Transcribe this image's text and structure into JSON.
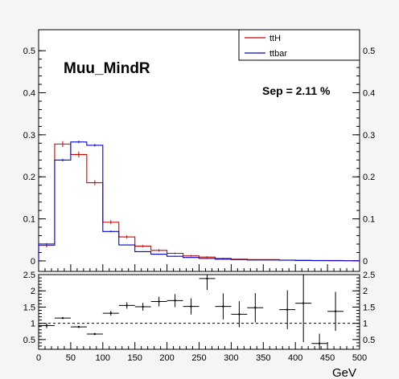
{
  "chart_data": [
    {
      "type": "line",
      "title": "Muu_MindR",
      "annotation": "Sep = 2.11 %",
      "xlim": [
        0,
        500
      ],
      "ylim": [
        -0.025,
        0.55
      ],
      "x_ticks": [],
      "y_ticks": [
        "0",
        "0.1",
        "0.2",
        "0.3",
        "0.4",
        "0.5"
      ],
      "y_tick_values": [
        0,
        0.1,
        0.2,
        0.3,
        0.4,
        0.5
      ],
      "legend_placement": "top-right",
      "bin_edges": [
        0,
        25,
        50,
        75,
        100,
        125,
        150,
        175,
        200,
        225,
        250,
        275,
        300,
        325,
        350,
        375,
        400,
        425,
        450,
        475,
        500
      ],
      "series": [
        {
          "name": "ttH",
          "color": "#d00000",
          "values": [
            0.037,
            0.278,
            0.253,
            0.186,
            0.092,
            0.057,
            0.035,
            0.025,
            0.018,
            0.012,
            0.009,
            0.006,
            0.004,
            0.003,
            0.003,
            0.002,
            0.0015,
            0.001,
            0.001,
            0.0005
          ],
          "errors": [
            0.005,
            0.007,
            0.007,
            0.006,
            0.005,
            0.004,
            0.003,
            0.003,
            0.002,
            0.002,
            0.002,
            0.0015,
            0.001,
            0.001,
            0.001,
            0.001,
            0.001,
            0.0008,
            0.0008,
            0.0005
          ]
        },
        {
          "name": "ttbar",
          "color": "#0000d0",
          "values": [
            0.04,
            0.24,
            0.283,
            0.275,
            0.07,
            0.038,
            0.022,
            0.016,
            0.011,
            0.008,
            0.006,
            0.004,
            0.003,
            0.002,
            0.002,
            0.0015,
            0.001,
            0.0007,
            0.0005,
            0.0003
          ],
          "errors": [
            0.002,
            0.003,
            0.003,
            0.003,
            0.002,
            0.001,
            0.001,
            0.001,
            0.001,
            0.0008,
            0.0006,
            0.0005,
            0.0004,
            0.0003,
            0.0003,
            0.0002,
            0.0002,
            0.0002,
            0.0001,
            0.0001
          ]
        }
      ]
    },
    {
      "type": "scatter",
      "xlabel": "GeV",
      "xlim": [
        0,
        500
      ],
      "ylim": [
        0.2,
        2.5
      ],
      "reference_line": 1,
      "x_ticks": [
        "0",
        "50",
        "100",
        "150",
        "200",
        "250",
        "300",
        "350",
        "400",
        "450",
        "500"
      ],
      "x_tick_values": [
        0,
        50,
        100,
        150,
        200,
        250,
        300,
        350,
        400,
        450,
        500
      ],
      "y_ticks": [
        "0.5",
        "1",
        "1.5",
        "2",
        "2.5"
      ],
      "y_tick_values": [
        0.5,
        1,
        1.5,
        2,
        2.5
      ],
      "bin_width": 25,
      "points": [
        {
          "x": 12.5,
          "y": 0.93,
          "err": 0.08
        },
        {
          "x": 37.5,
          "y": 1.16,
          "err": 0.03
        },
        {
          "x": 62.5,
          "y": 0.89,
          "err": 0.03
        },
        {
          "x": 87.5,
          "y": 0.67,
          "err": 0.03
        },
        {
          "x": 112.5,
          "y": 1.31,
          "err": 0.07
        },
        {
          "x": 137.5,
          "y": 1.55,
          "err": 0.1
        },
        {
          "x": 162.5,
          "y": 1.51,
          "err": 0.12
        },
        {
          "x": 187.5,
          "y": 1.67,
          "err": 0.15
        },
        {
          "x": 212.5,
          "y": 1.7,
          "err": 0.2
        },
        {
          "x": 237.5,
          "y": 1.52,
          "err": 0.25
        },
        {
          "x": 262.5,
          "y": 2.38,
          "err": 0.35
        },
        {
          "x": 287.5,
          "y": 1.52,
          "err": 0.4
        },
        {
          "x": 312.5,
          "y": 1.28,
          "err": 0.4
        },
        {
          "x": 337.5,
          "y": 1.48,
          "err": 0.45
        },
        {
          "x": 387.5,
          "y": 1.42,
          "err": 0.6
        },
        {
          "x": 412.5,
          "y": 1.62,
          "err": 1.2
        },
        {
          "x": 437.5,
          "y": 0.38,
          "err": 0.3
        },
        {
          "x": 462.5,
          "y": 1.37,
          "err": 0.6
        }
      ]
    }
  ]
}
